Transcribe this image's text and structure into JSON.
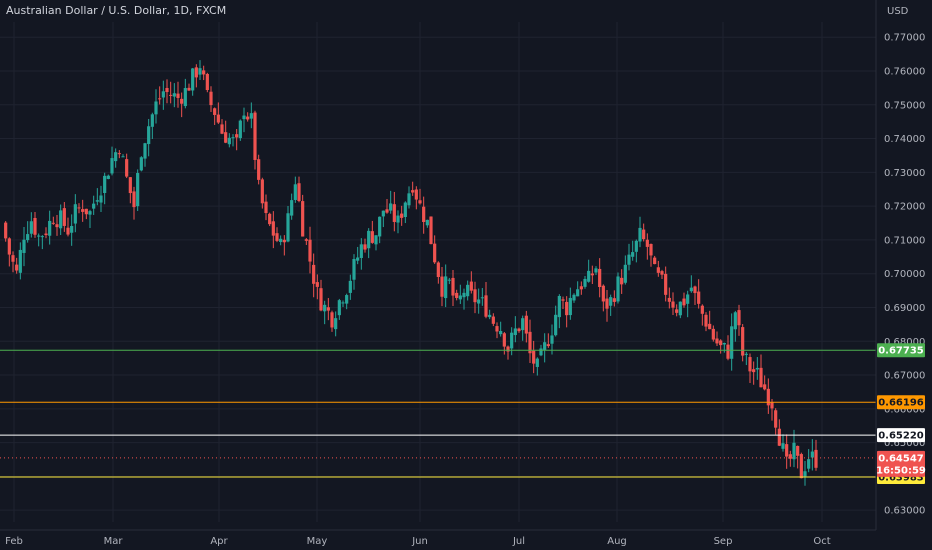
{
  "chart_data": {
    "type": "candlestick",
    "title": "Australian Dollar / U.S. Dollar, 1D, FXCM",
    "currency_label": "USD",
    "y_ticks": [
      "0.77000",
      "0.76000",
      "0.75000",
      "0.74000",
      "0.73000",
      "0.72000",
      "0.71000",
      "0.70000",
      "0.69000",
      "0.68000",
      "0.67000",
      "0.66000",
      "0.65000",
      "0.64000",
      "0.63000"
    ],
    "ylim": [
      0.6265,
      0.7745
    ],
    "x_ticks": [
      "Feb",
      "Mar",
      "Apr",
      "May",
      "Jun",
      "Jul",
      "Aug",
      "Sep",
      "Oct"
    ],
    "grid": true,
    "horizontal_lines": [
      {
        "value": 0.67735,
        "label": "0.67735",
        "color": "#4caf50"
      },
      {
        "value": 0.66196,
        "label": "0.66196",
        "color": "#ff9800"
      },
      {
        "value": 0.6522,
        "label": "0.65220",
        "color": "#ffffff"
      },
      {
        "value": 0.63983,
        "label": "0.63983",
        "color": "#ffeb3b"
      }
    ],
    "last_price": {
      "value": 0.64547,
      "label": "0.64547",
      "countdown": "16:50:59",
      "color": "#ef5350"
    },
    "up_color": "#26a69a",
    "down_color": "#ef5350",
    "close_path": [
      [
        0,
        0.715
      ],
      [
        2,
        0.706
      ],
      [
        4,
        0.7
      ],
      [
        6,
        0.712
      ],
      [
        8,
        0.716
      ],
      [
        10,
        0.711
      ],
      [
        12,
        0.713
      ],
      [
        14,
        0.717
      ],
      [
        16,
        0.716
      ],
      [
        18,
        0.713
      ],
      [
        20,
        0.718
      ],
      [
        22,
        0.72
      ],
      [
        24,
        0.718
      ],
      [
        26,
        0.724
      ],
      [
        28,
        0.728
      ],
      [
        30,
        0.734
      ],
      [
        32,
        0.738
      ],
      [
        34,
        0.728
      ],
      [
        36,
        0.72
      ],
      [
        38,
        0.737
      ],
      [
        40,
        0.744
      ],
      [
        42,
        0.75
      ],
      [
        44,
        0.754
      ],
      [
        46,
        0.753
      ],
      [
        48,
        0.752
      ],
      [
        50,
        0.754
      ],
      [
        52,
        0.758
      ],
      [
        54,
        0.762
      ],
      [
        56,
        0.752
      ],
      [
        58,
        0.748
      ],
      [
        60,
        0.742
      ],
      [
        62,
        0.74
      ],
      [
        64,
        0.738
      ],
      [
        66,
        0.749
      ],
      [
        68,
        0.745
      ],
      [
        70,
        0.725
      ],
      [
        72,
        0.716
      ],
      [
        74,
        0.712
      ],
      [
        76,
        0.708
      ],
      [
        78,
        0.716
      ],
      [
        80,
        0.728
      ],
      [
        82,
        0.714
      ],
      [
        84,
        0.704
      ],
      [
        86,
        0.694
      ],
      [
        88,
        0.69
      ],
      [
        90,
        0.687
      ],
      [
        92,
        0.692
      ],
      [
        94,
        0.696
      ],
      [
        96,
        0.702
      ],
      [
        98,
        0.708
      ],
      [
        100,
        0.711
      ],
      [
        102,
        0.712
      ],
      [
        104,
        0.719
      ],
      [
        106,
        0.718
      ],
      [
        108,
        0.715
      ],
      [
        110,
        0.722
      ],
      [
        112,
        0.727
      ],
      [
        114,
        0.72
      ],
      [
        116,
        0.715
      ],
      [
        118,
        0.705
      ],
      [
        120,
        0.696
      ],
      [
        122,
        0.697
      ],
      [
        124,
        0.69
      ],
      [
        126,
        0.695
      ],
      [
        128,
        0.693
      ],
      [
        130,
        0.692
      ],
      [
        132,
        0.69
      ],
      [
        134,
        0.686
      ],
      [
        136,
        0.684
      ],
      [
        138,
        0.678
      ],
      [
        140,
        0.683
      ],
      [
        142,
        0.686
      ],
      [
        144,
        0.676
      ],
      [
        146,
        0.672
      ],
      [
        148,
        0.678
      ],
      [
        150,
        0.684
      ],
      [
        152,
        0.692
      ],
      [
        154,
        0.69
      ],
      [
        156,
        0.695
      ],
      [
        158,
        0.697
      ],
      [
        160,
        0.698
      ],
      [
        162,
        0.702
      ],
      [
        164,
        0.69
      ],
      [
        166,
        0.692
      ],
      [
        168,
        0.697
      ],
      [
        170,
        0.701
      ],
      [
        172,
        0.706
      ],
      [
        174,
        0.711
      ],
      [
        176,
        0.708
      ],
      [
        178,
        0.7
      ],
      [
        180,
        0.697
      ],
      [
        182,
        0.693
      ],
      [
        184,
        0.69
      ],
      [
        186,
        0.692
      ],
      [
        188,
        0.696
      ],
      [
        190,
        0.69
      ],
      [
        192,
        0.686
      ],
      [
        194,
        0.681
      ],
      [
        196,
        0.678
      ],
      [
        198,
        0.677
      ],
      [
        200,
        0.689
      ],
      [
        202,
        0.676
      ],
      [
        204,
        0.672
      ],
      [
        206,
        0.67
      ],
      [
        208,
        0.666
      ],
      [
        210,
        0.662
      ],
      [
        212,
        0.652
      ],
      [
        214,
        0.643
      ],
      [
        216,
        0.647
      ],
      [
        218,
        0.641
      ],
      [
        220,
        0.646
      ],
      [
        222,
        0.645
      ]
    ]
  }
}
